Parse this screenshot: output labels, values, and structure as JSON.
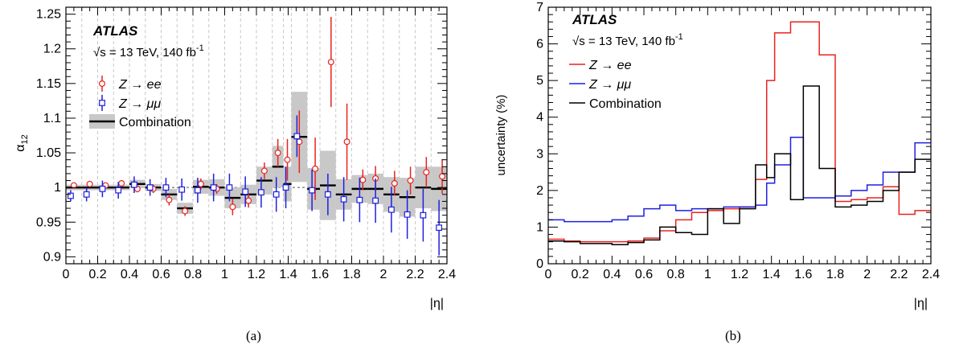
{
  "chart_data": [
    {
      "panel_label": "(a)",
      "type": "scatter",
      "xlabel": "|η|",
      "ylabel": "α",
      "ylabel_sub": "12",
      "xlim": [
        0,
        2.4
      ],
      "ylim": [
        0.89,
        1.26
      ],
      "xticks": [
        "0",
        "0.2",
        "0.4",
        "0.6",
        "0.8",
        "1",
        "1.2",
        "1.4",
        "1.6",
        "1.8",
        "2",
        "2.2",
        "2.4"
      ],
      "yticks": [
        "0.9",
        "0.95",
        "1",
        "1.05",
        "1.1",
        "1.15",
        "1.2",
        "1.25"
      ],
      "grid": "vertical dashed at bin edges",
      "reference_line": 1.0,
      "experiment": "ATLAS",
      "energy_label": "√s = 13 TeV, 140 fb",
      "energy_sup": "-1",
      "legend": {
        "position": "top-left",
        "entries": [
          "Z → ee",
          "Z → μμ",
          "Combination"
        ]
      },
      "bin_edges": [
        0,
        0.1,
        0.2,
        0.3,
        0.4,
        0.5,
        0.6,
        0.7,
        0.8,
        0.9,
        1.0,
        1.1,
        1.2,
        1.3,
        1.37,
        1.42,
        1.52,
        1.6,
        1.7,
        1.8,
        1.9,
        2.0,
        2.1,
        2.2,
        2.3,
        2.4
      ],
      "series": [
        {
          "name": "Z → ee",
          "color": "#e8231f",
          "marker": "circle",
          "x": [
            0.05,
            0.15,
            0.25,
            0.35,
            0.45,
            0.55,
            0.65,
            0.75,
            0.85,
            0.95,
            1.05,
            1.15,
            1.25,
            1.335,
            1.395,
            1.47,
            1.57,
            1.67,
            1.77,
            1.87,
            1.95,
            2.07,
            2.17,
            2.27,
            2.37
          ],
          "y": [
            1.003,
            1.005,
            1.003,
            1.006,
            0.998,
            0.998,
            0.982,
            0.966,
            1.005,
            0.998,
            0.972,
            0.981,
            1.024,
            1.05,
            1.04,
            1.066,
            1.027,
            1.181,
            1.066,
            1.011,
            1.013,
            1.006,
            1.01,
            1.022,
            1.016
          ],
          "err": [
            0.003,
            0.004,
            0.003,
            0.004,
            0.005,
            0.006,
            0.008,
            0.007,
            0.008,
            0.007,
            0.012,
            0.01,
            0.012,
            0.02,
            0.03,
            0.045,
            0.045,
            0.065,
            0.055,
            0.015,
            0.018,
            0.018,
            0.02,
            0.022,
            0.025
          ]
        },
        {
          "name": "Z → μμ",
          "color": "#1f1fe0",
          "marker": "square",
          "x": [
            0.03,
            0.13,
            0.23,
            0.33,
            0.43,
            0.53,
            0.63,
            0.73,
            0.83,
            0.93,
            1.03,
            1.13,
            1.23,
            1.325,
            1.385,
            1.455,
            1.55,
            1.65,
            1.75,
            1.85,
            1.95,
            2.05,
            2.15,
            2.25,
            2.35
          ],
          "y": [
            0.988,
            0.99,
            0.998,
            0.996,
            1.004,
            1.0,
            1.0,
            0.997,
            0.996,
            1.0,
            1.0,
            0.994,
            0.993,
            0.99,
            1.0,
            1.074,
            0.996,
            0.99,
            0.983,
            0.982,
            0.981,
            0.968,
            0.961,
            0.96,
            0.942
          ],
          "err": [
            0.008,
            0.01,
            0.012,
            0.012,
            0.012,
            0.012,
            0.014,
            0.016,
            0.018,
            0.02,
            0.02,
            0.022,
            0.022,
            0.025,
            0.03,
            0.03,
            0.03,
            0.03,
            0.032,
            0.032,
            0.032,
            0.033,
            0.035,
            0.038,
            0.04
          ]
        },
        {
          "name": "Combination",
          "color": "#000000",
          "style": "step with grey band",
          "values": [
            1.0,
            1.0,
            1.0,
            1.0,
            1.005,
            1.0,
            0.99,
            0.97,
            1.001,
            1.0,
            0.985,
            0.99,
            1.01,
            1.03,
            1.005,
            1.073,
            0.998,
            1.003,
            0.99,
            0.998,
            0.998,
            0.99,
            0.986,
            1.0,
            0.998
          ],
          "band": [
            0.004,
            0.004,
            0.004,
            0.004,
            0.006,
            0.005,
            0.008,
            0.008,
            0.01,
            0.012,
            0.015,
            0.014,
            0.02,
            0.03,
            0.025,
            0.065,
            0.03,
            0.05,
            0.022,
            0.02,
            0.022,
            0.025,
            0.028,
            0.03,
            0.032
          ]
        }
      ]
    },
    {
      "panel_label": "(b)",
      "type": "line",
      "style": "step",
      "xlabel": "|η|",
      "ylabel": "uncertainty (%)",
      "xlim": [
        0,
        2.4
      ],
      "ylim": [
        0,
        7
      ],
      "xticks": [
        "0",
        "0.2",
        "0.4",
        "0.6",
        "0.8",
        "1",
        "1.2",
        "1.4",
        "1.6",
        "1.8",
        "2",
        "2.2",
        "2.4"
      ],
      "yticks": [
        "0",
        "1",
        "2",
        "3",
        "4",
        "5",
        "6",
        "7"
      ],
      "experiment": "ATLAS",
      "energy_label": "√s = 13 TeV, 140 fb",
      "energy_sup": "-1",
      "legend": {
        "position": "top-left",
        "entries": [
          "Z → ee",
          "Z → μμ",
          "Combination"
        ]
      },
      "bin_edges": [
        0,
        0.1,
        0.2,
        0.3,
        0.4,
        0.5,
        0.6,
        0.7,
        0.8,
        0.9,
        1.0,
        1.1,
        1.2,
        1.3,
        1.37,
        1.42,
        1.52,
        1.6,
        1.7,
        1.8,
        1.9,
        2.0,
        2.1,
        2.2,
        2.3,
        2.4
      ],
      "series": [
        {
          "name": "Z → ee",
          "color": "#e8231f",
          "values": [
            0.67,
            0.62,
            0.6,
            0.6,
            0.6,
            0.62,
            0.7,
            0.9,
            1.2,
            1.4,
            1.45,
            1.5,
            1.55,
            2.3,
            5.0,
            6.3,
            6.6,
            6.6,
            5.7,
            1.7,
            1.75,
            1.8,
            2.1,
            1.35,
            1.45,
            2.0
          ]
        },
        {
          "name": "Z → μμ",
          "color": "#1f1fe0",
          "values": [
            1.2,
            1.15,
            1.15,
            1.15,
            1.2,
            1.3,
            1.5,
            1.6,
            1.45,
            1.5,
            1.5,
            1.55,
            1.55,
            1.6,
            2.2,
            2.7,
            3.45,
            1.8,
            1.8,
            1.85,
            2.0,
            2.15,
            2.5,
            2.5,
            3.3,
            3.45
          ]
        },
        {
          "name": "Combination",
          "color": "#000000",
          "values": [
            0.62,
            0.6,
            0.55,
            0.55,
            0.52,
            0.58,
            0.65,
            1.0,
            0.85,
            0.8,
            1.5,
            1.1,
            1.5,
            2.7,
            2.35,
            3.0,
            1.75,
            4.85,
            2.6,
            1.55,
            1.6,
            1.7,
            2.0,
            2.5,
            2.85,
            3.25
          ]
        }
      ]
    }
  ]
}
